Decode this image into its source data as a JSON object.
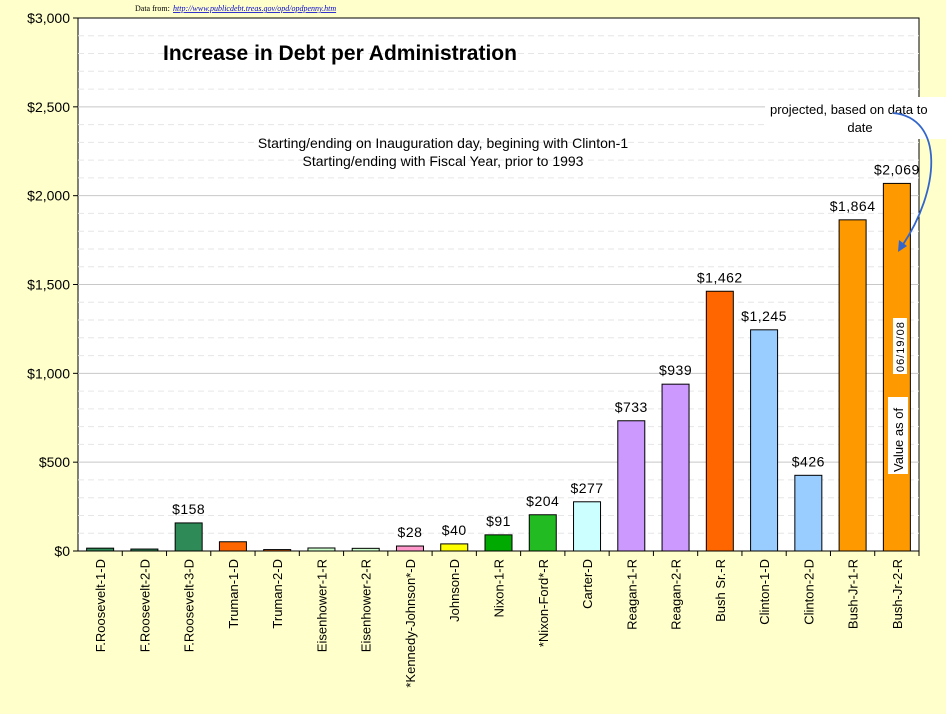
{
  "chart_data": {
    "type": "bar",
    "title": "Increase in Debt per Administration",
    "subtitle": [
      "Starting/ending on Inauguration day, begining with Clinton-1",
      "Starting/ending with Fiscal Year, prior to 1993"
    ],
    "source_prefix": "Data from:",
    "source_url": "http://www.publicdebt.treas.gov/opd/opdpenny.htm",
    "categories": [
      "F.Roosevelt-1-D",
      "F.Roosevelt-2-D",
      "F.Roosevelt-3-D",
      "Truman-1-D",
      "Truman-2-D",
      "Eisenhower-1-R",
      "Eisenhower-2-R",
      "*Kennedy-Johnson*-D",
      "Johnson-D",
      "Nixon-1-R",
      "*Nixon-Ford*-R",
      "Carter-D",
      "Reagan-1-R",
      "Reagan-2-R",
      "Bush Sr.-R",
      "Clinton-1-D",
      "Clinton-2-D",
      "Bush-Jr-1-R",
      "Bush-Jr-2-R"
    ],
    "values": [
      16,
      11,
      158,
      52,
      8,
      17,
      15,
      28,
      40,
      91,
      204,
      277,
      733,
      939,
      1462,
      1245,
      426,
      1864,
      2069
    ],
    "data_labels": [
      "",
      "",
      "$158",
      "",
      "",
      "",
      "",
      "$28",
      "$40",
      "$91",
      "$204",
      "$277",
      "$733",
      "$939",
      "$1,462",
      "$1,245",
      "$426",
      "$1,864",
      "$2,069"
    ],
    "colors": [
      "#2e8b57",
      "#2e8b57",
      "#2e8b57",
      "#ff6600",
      "#ff6600",
      "#ccffcc",
      "#ccffcc",
      "#ff99cc",
      "#ffff00",
      "#00aa00",
      "#22bb22",
      "#ccffff",
      "#cc99ff",
      "#cc99ff",
      "#ff6600",
      "#99ccff",
      "#99ccff",
      "#ff9900",
      "#ff9900"
    ],
    "ylim": [
      0,
      3000
    ],
    "yticks": [
      0,
      500,
      1000,
      1500,
      2000,
      2500,
      3000
    ],
    "ytick_labels": [
      "$0",
      "$500",
      "$1,000",
      "$1,500",
      "$2,000",
      "$2,500",
      "$3,000"
    ],
    "xlabel": "",
    "ylabel": "",
    "grid": true,
    "legend": "none",
    "annotations": {
      "projected_line1": "projected, based on data to",
      "projected_line2": "date",
      "value_as_of": "Value as of",
      "value_date": "06/19/08"
    }
  }
}
